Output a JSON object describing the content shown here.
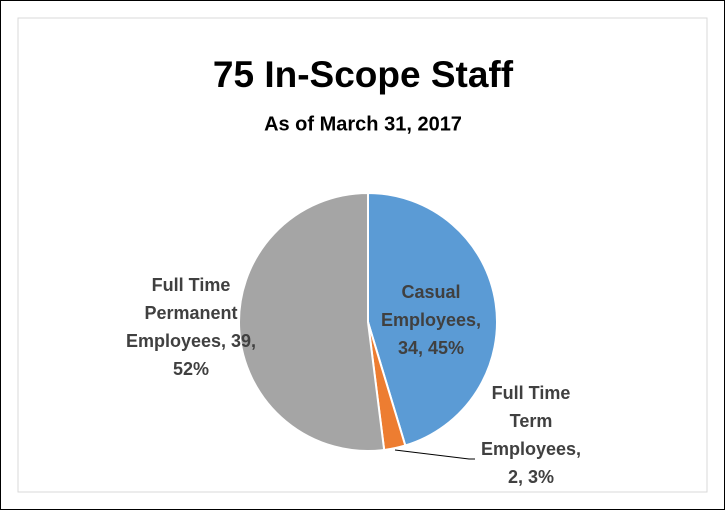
{
  "chart_data": {
    "type": "pie",
    "title": "75 In-Scope Staff",
    "subtitle": "As of March 31, 2017",
    "values": [
      34,
      2,
      39
    ],
    "value_labels": [
      "Casual Employees, 34, 45%",
      "Full Time Term Employees, 2, 3%",
      "Full Time Permanent Employees, 39, 52%"
    ],
    "colors": [
      "#5b9bd5",
      "#ed7d31",
      "#a5a5a5"
    ]
  }
}
